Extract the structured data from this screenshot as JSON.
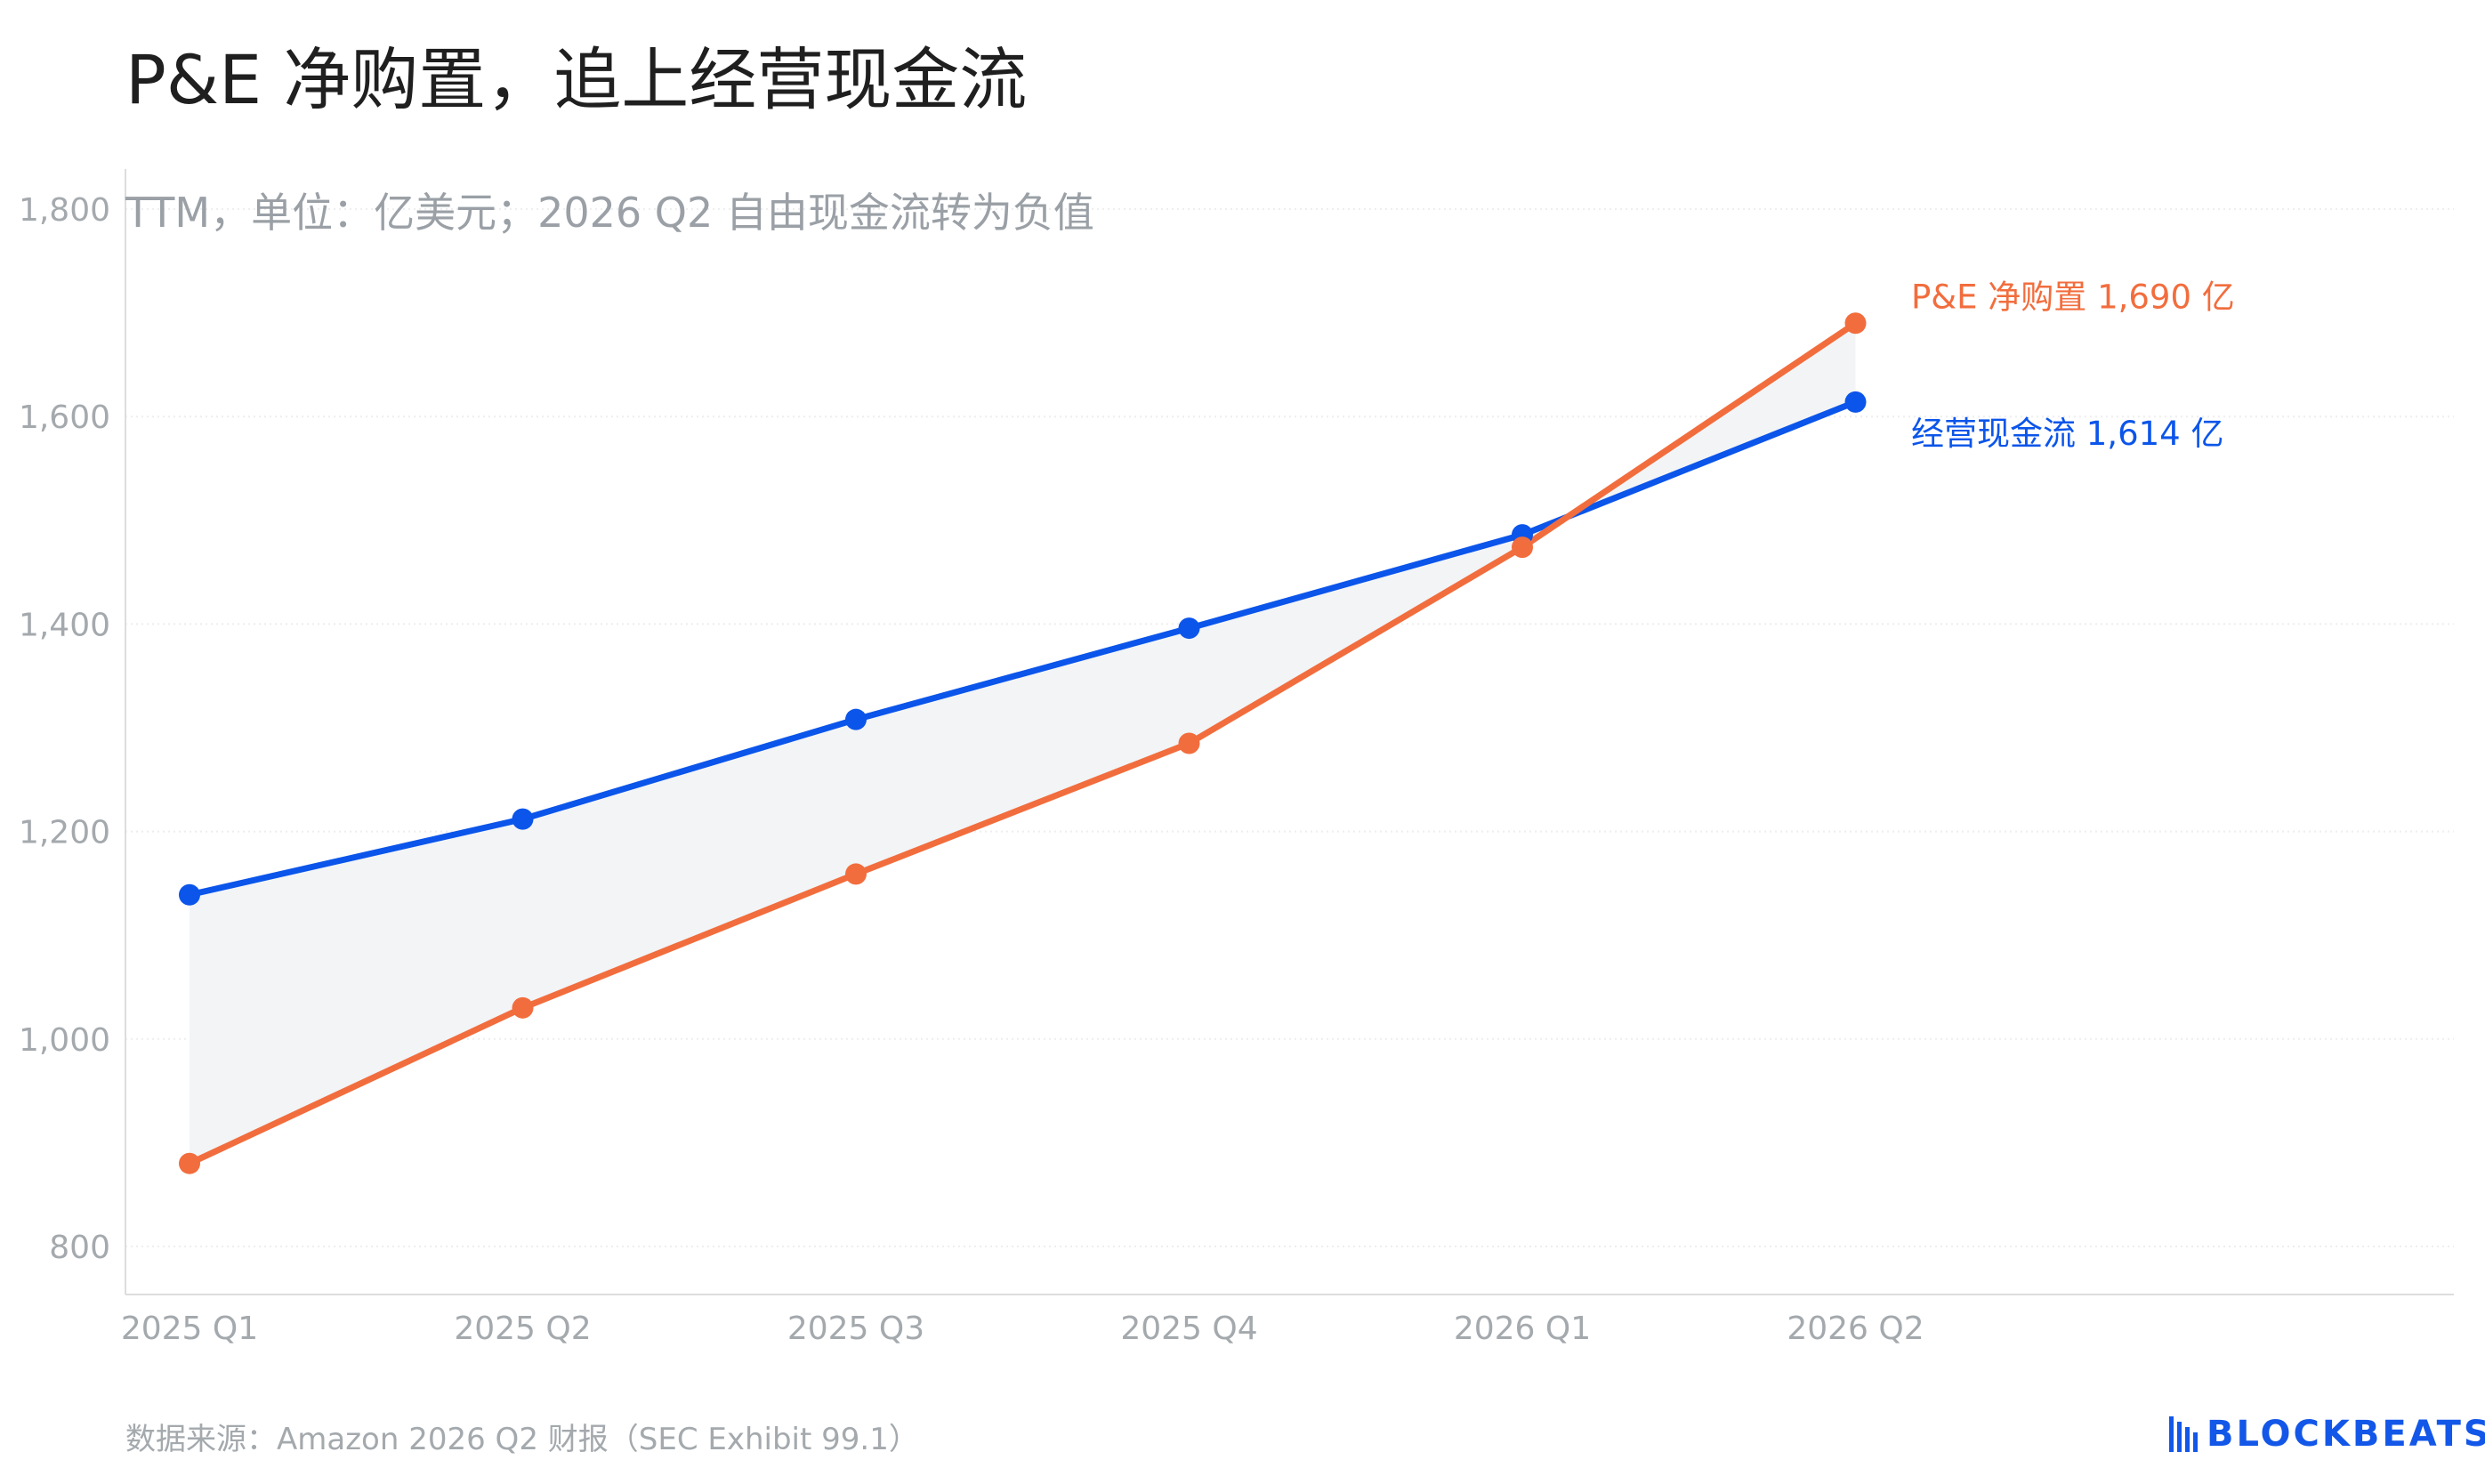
{
  "header": {
    "title": "P&E 净购置，追上经营现金流",
    "subtitle": "TTM，单位：亿美元；2026 Q2 自由现金流转为负值"
  },
  "footer": {
    "source": "数据来源：Amazon 2026 Q2 财报（SEC Exhibit 99.1）",
    "logo_text": "BLOCKBEATS",
    "logo_icon": "blockbeats-bars-icon"
  },
  "colors": {
    "ocf": "#0b55ea",
    "pe": "#f26d3d",
    "gap_fill": "#f2f4f6",
    "grid": "#eeeeee",
    "axis": "#dddddd",
    "tick_text": "#a4a9ad"
  },
  "chart_data": {
    "type": "line",
    "categories": [
      "2025 Q1",
      "2025 Q2",
      "2025 Q3",
      "2025 Q4",
      "2026 Q1",
      "2026 Q2"
    ],
    "series": [
      {
        "key": "ocf",
        "name": "经营现金流",
        "values": [
          1139,
          1212,
          1308,
          1396,
          1486,
          1614
        ],
        "end_label": "经营现金流 1,614 亿"
      },
      {
        "key": "pe",
        "name": "P&E 净购置",
        "values": [
          880,
          1030,
          1159,
          1285,
          1474,
          1690
        ],
        "end_label": "P&E 净购置 1,690 亿"
      }
    ],
    "ylim": [
      800,
      1800
    ],
    "yticks": [
      800,
      1000,
      1200,
      1400,
      1600,
      1800
    ],
    "ytick_labels": [
      "800",
      "1,000",
      "1,200",
      "1,400",
      "1,600",
      "1,800"
    ],
    "grid": true,
    "shaded_gap_between_series": true,
    "title": "P&E 净购置，追上经营现金流",
    "subtitle": "TTM，单位：亿美元；2026 Q2 自由现金流转为负值",
    "xlabel": "",
    "ylabel": ""
  }
}
